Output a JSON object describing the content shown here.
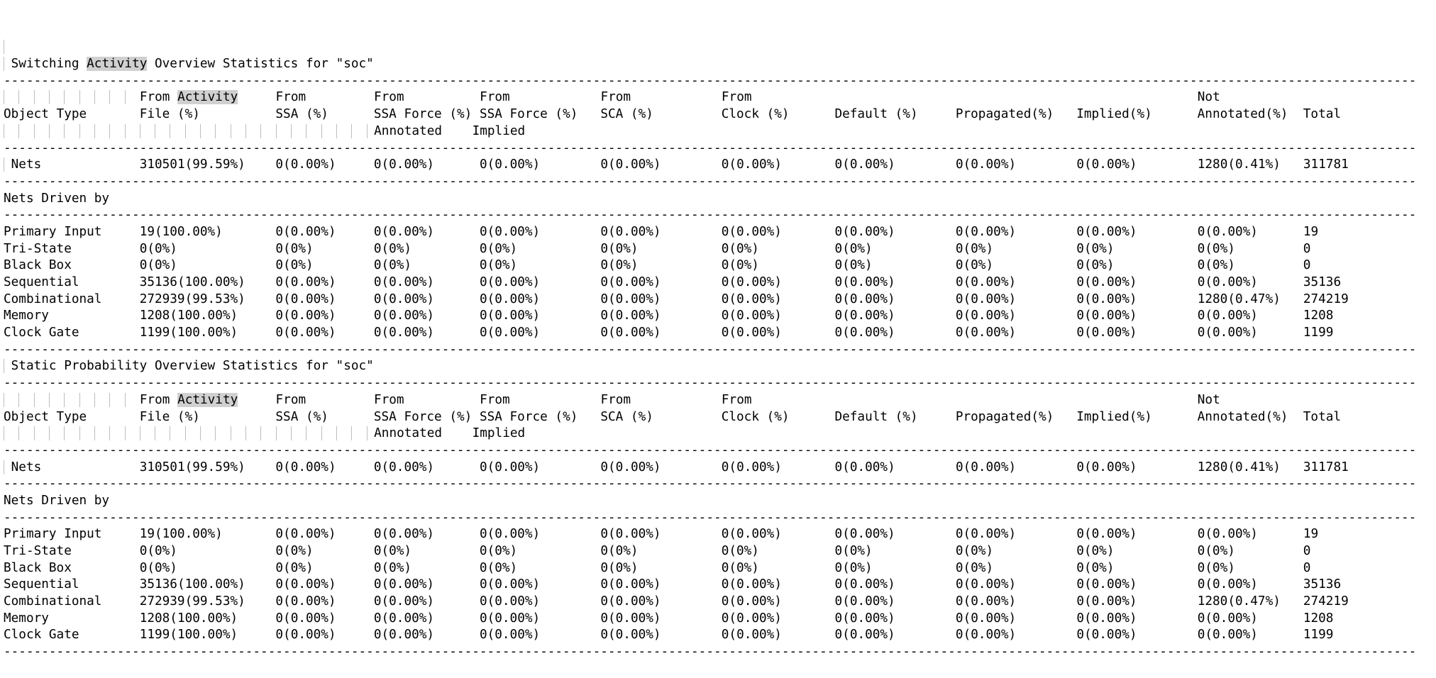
{
  "app": {
    "description_label": "switching-activity-report-viewer"
  },
  "search": {
    "term": "Activity"
  },
  "colors": {
    "text": "#000000",
    "background": "#ffffff",
    "highlight_bg": "#d0d0d0",
    "tab_guide": "#bdbdbd"
  },
  "layout": {
    "columns_chars": [
      0,
      18,
      36,
      49,
      63,
      79,
      95,
      110,
      126,
      142,
      158,
      172
    ],
    "dash_count": 187,
    "header1_guides_to": 18,
    "header3_guides_to": 49
  },
  "column_names": [
    "Object Type",
    "From Activity File (%)",
    "From SSA (%)",
    "From SSA Force (%) Annotated",
    "From SSA Force (%) Implied",
    "From SCA (%)",
    "From Clock (%)",
    "Default (%)",
    "Propagated(%)",
    "Implied(%)",
    "Not Annotated(%)",
    "Total"
  ],
  "sections": [
    {
      "title": "Switching Activity Overview Statistics for \"soc\"",
      "header_line1": [
        {
          "c": 18,
          "t": "From Activity"
        },
        {
          "c": 36,
          "t": "From"
        },
        {
          "c": 49,
          "t": "From"
        },
        {
          "c": 63,
          "t": "From"
        },
        {
          "c": 79,
          "t": "From"
        },
        {
          "c": 95,
          "t": "From"
        },
        {
          "c": 158,
          "t": "Not"
        }
      ],
      "header_line2": [
        {
          "c": 0,
          "t": "Object Type"
        },
        {
          "c": 18,
          "t": "File (%)"
        },
        {
          "c": 36,
          "t": "SSA (%)"
        },
        {
          "c": 49,
          "t": "SSA Force (%)"
        },
        {
          "c": 63,
          "t": "SSA Force (%)"
        },
        {
          "c": 79,
          "t": "SCA (%)"
        },
        {
          "c": 95,
          "t": "Clock (%)"
        },
        {
          "c": 110,
          "t": "Default (%)"
        },
        {
          "c": 126,
          "t": "Propagated(%)"
        },
        {
          "c": 142,
          "t": "Implied(%)"
        },
        {
          "c": 158,
          "t": "Annotated(%)"
        },
        {
          "c": 172,
          "t": "Total"
        }
      ],
      "header_line3": [
        {
          "c": 49,
          "t": "Annotated"
        },
        {
          "c": 62,
          "t": "Implied"
        }
      ],
      "nets_row": {
        "label": "Nets",
        "values": [
          "310501(99.59%)",
          "0(0.00%)",
          "0(0.00%)",
          "0(0.00%)",
          "0(0.00%)",
          "0(0.00%)",
          "0(0.00%)",
          "0(0.00%)",
          "0(0.00%)",
          "1280(0.41%)",
          "311781"
        ]
      },
      "group_label": "Nets Driven by",
      "rows": [
        {
          "label": "Primary Input",
          "values": [
            "19(100.00%)",
            "0(0.00%)",
            "0(0.00%)",
            "0(0.00%)",
            "0(0.00%)",
            "0(0.00%)",
            "0(0.00%)",
            "0(0.00%)",
            "0(0.00%)",
            "0(0.00%)",
            "19"
          ]
        },
        {
          "label": "Tri-State",
          "values": [
            "0(0%)",
            "0(0%)",
            "0(0%)",
            "0(0%)",
            "0(0%)",
            "0(0%)",
            "0(0%)",
            "0(0%)",
            "0(0%)",
            "0(0%)",
            "0"
          ]
        },
        {
          "label": "Black Box",
          "values": [
            "0(0%)",
            "0(0%)",
            "0(0%)",
            "0(0%)",
            "0(0%)",
            "0(0%)",
            "0(0%)",
            "0(0%)",
            "0(0%)",
            "0(0%)",
            "0"
          ]
        },
        {
          "label": "Sequential",
          "values": [
            "35136(100.00%)",
            "0(0.00%)",
            "0(0.00%)",
            "0(0.00%)",
            "0(0.00%)",
            "0(0.00%)",
            "0(0.00%)",
            "0(0.00%)",
            "0(0.00%)",
            "0(0.00%)",
            "35136"
          ]
        },
        {
          "label": "Combinational",
          "values": [
            "272939(99.53%)",
            "0(0.00%)",
            "0(0.00%)",
            "0(0.00%)",
            "0(0.00%)",
            "0(0.00%)",
            "0(0.00%)",
            "0(0.00%)",
            "0(0.00%)",
            "1280(0.47%)",
            "274219"
          ]
        },
        {
          "label": "Memory",
          "values": [
            "1208(100.00%)",
            "0(0.00%)",
            "0(0.00%)",
            "0(0.00%)",
            "0(0.00%)",
            "0(0.00%)",
            "0(0.00%)",
            "0(0.00%)",
            "0(0.00%)",
            "0(0.00%)",
            "1208"
          ]
        },
        {
          "label": "Clock Gate",
          "values": [
            "1199(100.00%)",
            "0(0.00%)",
            "0(0.00%)",
            "0(0.00%)",
            "0(0.00%)",
            "0(0.00%)",
            "0(0.00%)",
            "0(0.00%)",
            "0(0.00%)",
            "0(0.00%)",
            "1199"
          ]
        }
      ]
    },
    {
      "title": "Static Probability Overview Statistics for \"soc\"",
      "header_line1": [
        {
          "c": 18,
          "t": "From Activity"
        },
        {
          "c": 36,
          "t": "From"
        },
        {
          "c": 49,
          "t": "From"
        },
        {
          "c": 63,
          "t": "From"
        },
        {
          "c": 79,
          "t": "From"
        },
        {
          "c": 95,
          "t": "From"
        },
        {
          "c": 158,
          "t": "Not"
        }
      ],
      "header_line2": [
        {
          "c": 0,
          "t": "Object Type"
        },
        {
          "c": 18,
          "t": "File (%)"
        },
        {
          "c": 36,
          "t": "SSA (%)"
        },
        {
          "c": 49,
          "t": "SSA Force (%)"
        },
        {
          "c": 63,
          "t": "SSA Force (%)"
        },
        {
          "c": 79,
          "t": "SCA (%)"
        },
        {
          "c": 95,
          "t": "Clock (%)"
        },
        {
          "c": 110,
          "t": "Default (%)"
        },
        {
          "c": 126,
          "t": "Propagated(%)"
        },
        {
          "c": 142,
          "t": "Implied(%)"
        },
        {
          "c": 158,
          "t": "Annotated(%)"
        },
        {
          "c": 172,
          "t": "Total"
        }
      ],
      "header_line3": [
        {
          "c": 49,
          "t": "Annotated"
        },
        {
          "c": 62,
          "t": "Implied"
        }
      ],
      "nets_row": {
        "label": "Nets",
        "values": [
          "310501(99.59%)",
          "0(0.00%)",
          "0(0.00%)",
          "0(0.00%)",
          "0(0.00%)",
          "0(0.00%)",
          "0(0.00%)",
          "0(0.00%)",
          "0(0.00%)",
          "1280(0.41%)",
          "311781"
        ]
      },
      "group_label": "Nets Driven by",
      "rows": [
        {
          "label": "Primary Input",
          "values": [
            "19(100.00%)",
            "0(0.00%)",
            "0(0.00%)",
            "0(0.00%)",
            "0(0.00%)",
            "0(0.00%)",
            "0(0.00%)",
            "0(0.00%)",
            "0(0.00%)",
            "0(0.00%)",
            "19"
          ]
        },
        {
          "label": "Tri-State",
          "values": [
            "0(0%)",
            "0(0%)",
            "0(0%)",
            "0(0%)",
            "0(0%)",
            "0(0%)",
            "0(0%)",
            "0(0%)",
            "0(0%)",
            "0(0%)",
            "0"
          ]
        },
        {
          "label": "Black Box",
          "values": [
            "0(0%)",
            "0(0%)",
            "0(0%)",
            "0(0%)",
            "0(0%)",
            "0(0%)",
            "0(0%)",
            "0(0%)",
            "0(0%)",
            "0(0%)",
            "0"
          ]
        },
        {
          "label": "Sequential",
          "values": [
            "35136(100.00%)",
            "0(0.00%)",
            "0(0.00%)",
            "0(0.00%)",
            "0(0.00%)",
            "0(0.00%)",
            "0(0.00%)",
            "0(0.00%)",
            "0(0.00%)",
            "0(0.00%)",
            "35136"
          ]
        },
        {
          "label": "Combinational",
          "values": [
            "272939(99.53%)",
            "0(0.00%)",
            "0(0.00%)",
            "0(0.00%)",
            "0(0.00%)",
            "0(0.00%)",
            "0(0.00%)",
            "0(0.00%)",
            "0(0.00%)",
            "1280(0.47%)",
            "274219"
          ]
        },
        {
          "label": "Memory",
          "values": [
            "1208(100.00%)",
            "0(0.00%)",
            "0(0.00%)",
            "0(0.00%)",
            "0(0.00%)",
            "0(0.00%)",
            "0(0.00%)",
            "0(0.00%)",
            "0(0.00%)",
            "0(0.00%)",
            "1208"
          ]
        },
        {
          "label": "Clock Gate",
          "values": [
            "1199(100.00%)",
            "0(0.00%)",
            "0(0.00%)",
            "0(0.00%)",
            "0(0.00%)",
            "0(0.00%)",
            "0(0.00%)",
            "0(0.00%)",
            "0(0.00%)",
            "0(0.00%)",
            "1199"
          ]
        }
      ]
    }
  ]
}
